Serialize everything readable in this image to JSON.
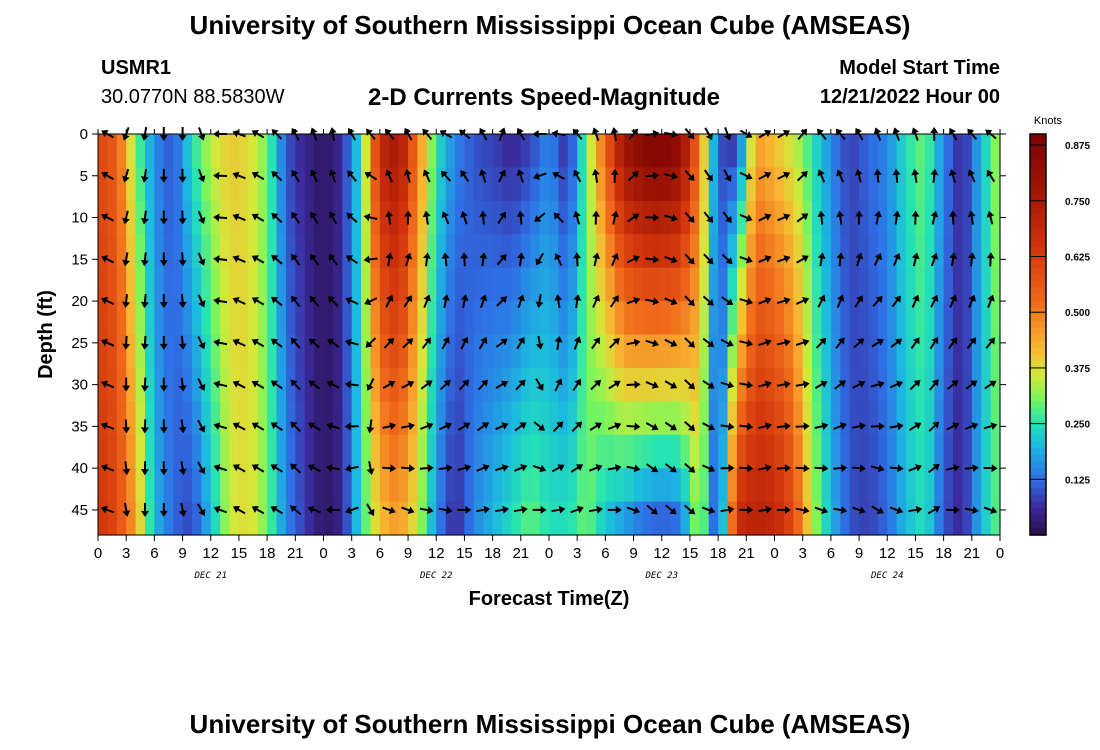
{
  "header": {
    "title": "University of Southern Mississippi Ocean Cube (AMSEAS)",
    "station": "USMR1",
    "coordinates": "30.0770N  88.5830W",
    "subtitle": "2-D Currents Speed-Magnitude",
    "model_start_label": "Model Start Time",
    "model_start_value": "12/21/2022 Hour 00"
  },
  "footer": {
    "title": "University of Southern Mississippi Ocean Cube (AMSEAS)"
  },
  "chart_data": {
    "type": "heatmap",
    "title": "2-D Currents Speed-Magnitude",
    "xlabel": "Forecast Time(Z)",
    "ylabel": "Depth (ft)",
    "x_tick_labels": [
      "0",
      "3",
      "6",
      "9",
      "12",
      "15",
      "18",
      "21",
      "0",
      "3",
      "6",
      "9",
      "12",
      "15",
      "18",
      "21",
      "0",
      "3",
      "6",
      "9",
      "12",
      "15",
      "18",
      "21",
      "0",
      "3",
      "6",
      "9",
      "12",
      "15",
      "18",
      "21",
      "0"
    ],
    "x_hours": [
      0,
      3,
      6,
      9,
      12,
      15,
      18,
      21,
      24,
      27,
      30,
      33,
      36,
      39,
      42,
      45,
      48,
      51,
      54,
      57,
      60,
      63,
      66,
      69,
      72,
      75,
      78,
      81,
      84,
      87,
      90,
      93,
      96
    ],
    "x_range_hours": [
      0,
      96
    ],
    "date_labels": [
      {
        "text": "DEC 21",
        "hour": 12
      },
      {
        "text": "DEC 22",
        "hour": 36
      },
      {
        "text": "DEC 23",
        "hour": 60
      },
      {
        "text": "DEC 24",
        "hour": 84
      }
    ],
    "y_tick_labels": [
      "0",
      "5",
      "10",
      "15",
      "20",
      "25",
      "30",
      "35",
      "40",
      "45"
    ],
    "y_ticks": [
      0,
      5,
      10,
      15,
      20,
      25,
      30,
      35,
      40,
      45
    ],
    "y_range": [
      0,
      48
    ],
    "y_inverted": true,
    "colorbar": {
      "label": "Knots",
      "range": [
        0.0,
        0.9
      ],
      "tick_values": [
        0.125,
        0.25,
        0.375,
        0.5,
        0.625,
        0.75,
        0.875
      ],
      "tick_labels": [
        "0.125",
        "0.250",
        "0.375",
        "0.500",
        "0.625",
        "0.750",
        "0.875"
      ]
    },
    "speed_profile_hours": [
      0,
      2,
      4,
      6,
      8,
      10,
      12,
      14,
      16,
      18,
      20,
      22,
      24,
      26,
      28,
      30,
      32,
      34,
      36,
      38,
      40,
      42,
      44,
      46,
      48,
      50,
      52,
      54,
      56,
      58,
      60,
      62,
      64,
      66,
      68,
      70,
      72,
      74,
      76,
      78,
      80,
      82,
      84,
      86,
      88,
      90,
      92,
      94,
      96
    ],
    "speed_surface_knots": [
      0.6,
      0.55,
      0.3,
      0.15,
      0.1,
      0.25,
      0.35,
      0.4,
      0.38,
      0.3,
      0.1,
      0.05,
      0.02,
      0.06,
      0.25,
      0.7,
      0.78,
      0.5,
      0.25,
      0.15,
      0.1,
      0.08,
      0.05,
      0.08,
      0.15,
      0.05,
      0.3,
      0.55,
      0.8,
      0.88,
      0.9,
      0.85,
      0.5,
      0.1,
      0.05,
      0.45,
      0.4,
      0.35,
      0.25,
      0.15,
      0.08,
      0.12,
      0.15,
      0.25,
      0.3,
      0.15,
      0.05,
      0.2,
      0.35
    ],
    "speed_bottom_knots": [
      0.65,
      0.6,
      0.45,
      0.2,
      0.12,
      0.08,
      0.2,
      0.35,
      0.38,
      0.3,
      0.15,
      0.08,
      0.02,
      0.05,
      0.25,
      0.4,
      0.45,
      0.35,
      0.15,
      0.05,
      0.15,
      0.2,
      0.25,
      0.3,
      0.25,
      0.25,
      0.3,
      0.2,
      0.15,
      0.1,
      0.08,
      0.1,
      0.35,
      0.05,
      0.7,
      0.72,
      0.7,
      0.6,
      0.35,
      0.2,
      0.1,
      0.08,
      0.12,
      0.2,
      0.25,
      0.1,
      0.05,
      0.2,
      0.3
    ],
    "arrow_hours": [
      1,
      3,
      5,
      7,
      9,
      11,
      13,
      15,
      17,
      19,
      21,
      23,
      25,
      27,
      29,
      31,
      33,
      35,
      37,
      39,
      41,
      43,
      45,
      47,
      49,
      51,
      53,
      55,
      57,
      59,
      61,
      63,
      65,
      67,
      69,
      71,
      73,
      75,
      77,
      79,
      81,
      83,
      85,
      87,
      89,
      91,
      93,
      95
    ],
    "arrow_direction_deg_surface": [
      300,
      200,
      190,
      180,
      180,
      160,
      270,
      290,
      300,
      315,
      330,
      340,
      350,
      330,
      320,
      320,
      330,
      320,
      300,
      310,
      330,
      20,
      330,
      270,
      280,
      320,
      340,
      350,
      40,
      80,
      100,
      140,
      150,
      160,
      120,
      60,
      60,
      40,
      320,
      320,
      330,
      340,
      340,
      340,
      360,
      330,
      320,
      310
    ],
    "arrow_direction_deg_bottom": [
      290,
      170,
      180,
      180,
      170,
      150,
      290,
      300,
      300,
      300,
      310,
      290,
      270,
      250,
      150,
      110,
      110,
      100,
      100,
      90,
      80,
      80,
      80,
      90,
      80,
      70,
      80,
      90,
      110,
      130,
      130,
      130,
      110,
      80,
      90,
      80,
      90,
      100,
      110,
      100,
      110,
      120,
      110,
      80,
      60,
      90,
      100,
      110
    ]
  }
}
